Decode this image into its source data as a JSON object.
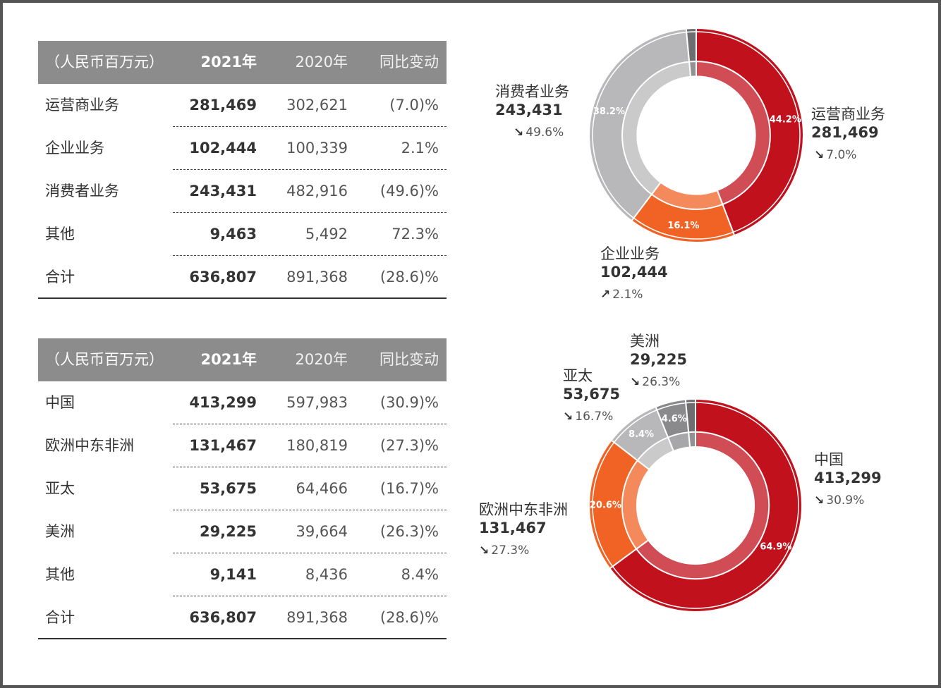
{
  "table_business": {
    "headers": [
      "（人民币百万元）",
      "2021年",
      "2020年",
      "同比变动"
    ],
    "rows": [
      {
        "name": "运营商业务",
        "y2021": "281,469",
        "y2020": "302,621",
        "change": "(7.0)%"
      },
      {
        "name": "企业业务",
        "y2021": "102,444",
        "y2020": "100,339",
        "change": "2.1%"
      },
      {
        "name": "消费者业务",
        "y2021": "243,431",
        "y2020": "482,916",
        "change": "(49.6)%"
      },
      {
        "name": "其他",
        "y2021": "9,463",
        "y2020": "5,492",
        "change": "72.3%"
      },
      {
        "name": "合计",
        "y2021": "636,807",
        "y2020": "891,368",
        "change": "(28.6)%"
      }
    ]
  },
  "table_region": {
    "headers": [
      "（人民币百万元）",
      "2021年",
      "2020年",
      "同比变动"
    ],
    "rows": [
      {
        "name": "中国",
        "y2021": "413,299",
        "y2020": "597,983",
        "change": "(30.9)%"
      },
      {
        "name": "欧洲中东非洲",
        "y2021": "131,467",
        "y2020": "180,819",
        "change": "(27.3)%"
      },
      {
        "name": "亚太",
        "y2021": "53,675",
        "y2020": "64,466",
        "change": "(16.7)%"
      },
      {
        "name": "美洲",
        "y2021": "29,225",
        "y2020": "39,664",
        "change": "(26.3)%"
      },
      {
        "name": "其他",
        "y2021": "9,141",
        "y2020": "8,436",
        "change": "8.4%"
      },
      {
        "name": "合计",
        "y2021": "636,807",
        "y2020": "891,368",
        "change": "(28.6)%"
      }
    ]
  },
  "chart_data": [
    {
      "type": "pie",
      "categories": [
        "运营商业务",
        "企业业务",
        "消费者业务",
        "其他"
      ],
      "values": [
        44.2,
        16.1,
        38.2,
        1.5
      ],
      "slice_labels": [
        "44.2%",
        "16.1%",
        "38.2%",
        ""
      ],
      "colors": [
        "#c0111c",
        "#f06325",
        "#b8b8ba",
        "#6e6e70"
      ],
      "callouts": [
        {
          "name": "运营商业务",
          "value": "281,469",
          "arrow": "↘",
          "change": "7.0%"
        },
        {
          "name": "企业业务",
          "value": "102,444",
          "arrow": "↗",
          "change": "2.1%"
        },
        {
          "name": "消费者业务",
          "value": "243,431",
          "arrow": "↘",
          "change": "49.6%"
        }
      ]
    },
    {
      "type": "pie",
      "categories": [
        "中国",
        "欧洲中东非洲",
        "亚太",
        "美洲",
        "其他"
      ],
      "values": [
        64.9,
        20.6,
        8.4,
        4.6,
        1.5
      ],
      "slice_labels": [
        "64.9%",
        "20.6%",
        "8.4%",
        "4.6%",
        ""
      ],
      "colors": [
        "#c0111c",
        "#f06325",
        "#b8b8ba",
        "#8a8a8c",
        "#6e6e70"
      ],
      "callouts": [
        {
          "name": "中国",
          "value": "413,299",
          "arrow": "↘",
          "change": "30.9%"
        },
        {
          "name": "欧洲中东非洲",
          "value": "131,467",
          "arrow": "↘",
          "change": "27.3%"
        },
        {
          "name": "亚太",
          "value": "53,675",
          "arrow": "↘",
          "change": "16.7%"
        },
        {
          "name": "美洲",
          "value": "29,225",
          "arrow": "↘",
          "change": "26.3%"
        }
      ]
    }
  ]
}
